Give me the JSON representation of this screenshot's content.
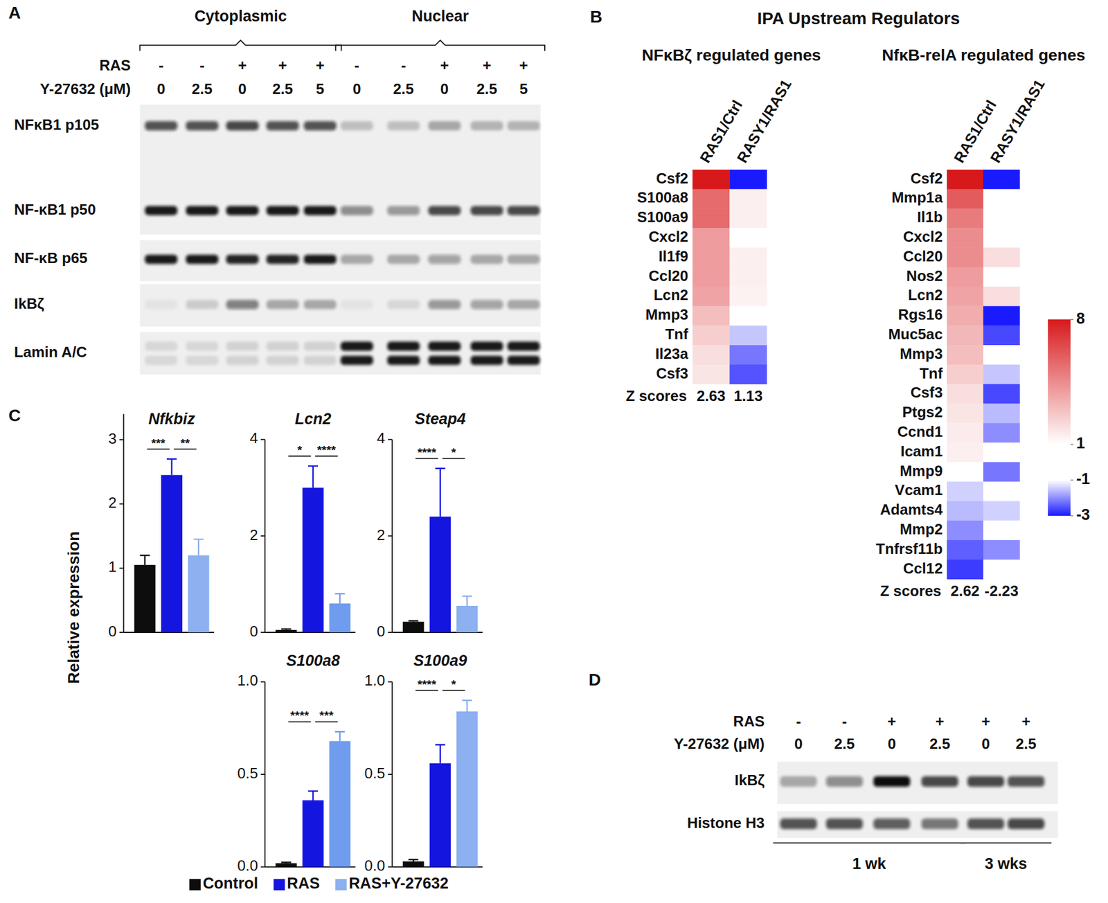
{
  "chart_data": [
    {
      "type": "blot",
      "panel": "A",
      "lane_groups": [
        "Cytoplasmic",
        "Cytoplasmic",
        "Cytoplasmic",
        "Cytoplasmic",
        "Cytoplasmic",
        "Nuclear",
        "Nuclear",
        "Nuclear",
        "Nuclear",
        "Nuclear"
      ],
      "lane_rows": [
        {
          "label": "RAS",
          "values": [
            "-",
            "-",
            "+",
            "+",
            "+",
            "-",
            "-",
            "+",
            "+",
            "+"
          ]
        },
        {
          "label": "Y-27632 (μM)",
          "values": [
            0,
            2.5,
            0,
            2.5,
            5,
            0,
            2.5,
            0,
            2.5,
            5
          ]
        }
      ],
      "strips": [
        {
          "rows": [
            {
              "label": "NFκB1 p105",
              "intensity": [
                0.7,
                0.7,
                0.75,
                0.7,
                0.7,
                0.2,
                0.2,
                0.3,
                0.25,
                0.25
              ]
            },
            {
              "label": "NF-κB1 p50",
              "intensity": [
                0.95,
                0.95,
                0.95,
                0.95,
                0.95,
                0.45,
                0.4,
                0.75,
                0.75,
                0.75
              ]
            }
          ]
        },
        {
          "rows": [
            {
              "label": "NF-κB p65",
              "intensity": [
                0.95,
                0.95,
                0.9,
                0.9,
                0.95,
                0.3,
                0.3,
                0.35,
                0.3,
                0.3
              ]
            }
          ]
        },
        {
          "rows": [
            {
              "label": "IkBζ",
              "intensity": [
                0.05,
                0.15,
                0.5,
                0.3,
                0.3,
                0.05,
                0.1,
                0.4,
                0.35,
                0.3
              ]
            }
          ]
        },
        {
          "rows": [
            {
              "label": "Lamin A/C",
              "intensity": [
                0.1,
                0.1,
                0.12,
                0.12,
                0.12,
                0.95,
                0.95,
                0.95,
                0.95,
                0.95
              ]
            },
            {
              "label": null,
              "intensity": [
                0.1,
                0.1,
                0.12,
                0.12,
                0.12,
                0.95,
                0.95,
                0.95,
                0.95,
                0.95
              ]
            }
          ]
        }
      ]
    },
    {
      "type": "heatmap",
      "panel": "B",
      "annotations": [
        {
          "text": "IPA Upstream Regulators"
        }
      ],
      "title": "NFκBζ regulated genes",
      "x": [
        "RAS1/Ctrl",
        "RASY1/RAS1"
      ],
      "y": [
        "Csf2",
        "S100a8",
        "S100a9",
        "Cxcl2",
        "Il1f9",
        "Ccl20",
        "Lcn2",
        "Mmp3",
        "Tnf",
        "Il23a",
        "Csf3"
      ],
      "cells": [
        [
          8,
          -3
        ],
        [
          5.5,
          1.5
        ],
        [
          5.5,
          1.5
        ],
        [
          4,
          1
        ],
        [
          4,
          1.5
        ],
        [
          4,
          1.5
        ],
        [
          3.8,
          1.4
        ],
        [
          3,
          1
        ],
        [
          2.5,
          -1.5
        ],
        [
          2,
          -2.2
        ],
        [
          1.8,
          -2.5
        ]
      ],
      "z_label": "Z scores",
      "z_scores": [
        2.63,
        1.13
      ]
    },
    {
      "type": "heatmap",
      "title": "NfκB-relA regulated genes",
      "x": [
        "RAS1/Ctrl",
        "RASY1/RAS1"
      ],
      "y": [
        "Csf2",
        "Mmp1a",
        "Il1b",
        "Cxcl2",
        "Ccl20",
        "Nos2",
        "Lcn2",
        "Rgs16",
        "Muc5ac",
        "Mmp3",
        "Tnf",
        "Csf3",
        "Ptgs2",
        "Ccnd1",
        "Icam1",
        "Mmp9",
        "Vcam1",
        "Adamts4",
        "Mmp2",
        "Tnfrsf11b",
        "Ccl12"
      ],
      "cells": [
        [
          8,
          -3
        ],
        [
          6,
          1
        ],
        [
          5,
          1
        ],
        [
          4.5,
          1
        ],
        [
          4.5,
          2
        ],
        [
          4,
          1
        ],
        [
          3.8,
          2
        ],
        [
          3.5,
          -3
        ],
        [
          3.2,
          -2.6
        ],
        [
          3,
          1
        ],
        [
          2.5,
          -1.5
        ],
        [
          2,
          -2.6
        ],
        [
          1.8,
          -1.6
        ],
        [
          1.6,
          -2
        ],
        [
          1.5,
          1
        ],
        [
          1,
          -2.2
        ],
        [
          -1.4,
          1
        ],
        [
          -1.6,
          -1.4
        ],
        [
          -2,
          1
        ],
        [
          -2.4,
          -2
        ],
        [
          -2.7,
          1
        ]
      ],
      "z_label": "Z scores",
      "z_scores": [
        2.62,
        -2.23
      ],
      "colorbar": {
        "range": [
          -3,
          8
        ],
        "ticks": [
          8,
          1,
          -1,
          -3
        ],
        "colors": [
          "#d7191c",
          "#ffffff",
          "#ffffff",
          "#1a1aff"
        ]
      }
    },
    {
      "type": "bar",
      "panel": "C",
      "title": "Nfkbiz",
      "y_label": "Relative expression",
      "categories": [
        "Control",
        "RAS",
        "RAS+Y-27632"
      ],
      "values": [
        1.05,
        2.45,
        1.2
      ],
      "errors": [
        0.15,
        0.25,
        0.25
      ],
      "colors": [
        "#0d0d0d",
        "#1515e0",
        "#8cb0f0"
      ],
      "ylim": [
        0,
        3.4
      ],
      "yticks": [
        0,
        1,
        2,
        3
      ],
      "tick_labels": "y",
      "legend": "bottom",
      "annotations": [
        {
          "text": "***",
          "between": [
            "Control",
            "RAS"
          ]
        },
        {
          "text": "**",
          "between": [
            "RAS",
            "RAS+Y-27632"
          ]
        }
      ]
    },
    {
      "type": "bar",
      "title": "Lcn2",
      "categories": [
        "Control",
        "RAS",
        "RAS+Y-27632"
      ],
      "values": [
        0.05,
        3.0,
        0.6
      ],
      "errors": [
        0.02,
        0.45,
        0.2
      ],
      "colors": [
        "#0d0d0d",
        "#1515e0",
        "#6f9cee"
      ],
      "ylim": [
        0,
        4
      ],
      "yticks": [
        0,
        2,
        4
      ],
      "tick_labels": "y",
      "annotations": [
        {
          "text": "*",
          "between": [
            "Control",
            "RAS"
          ]
        },
        {
          "text": "****",
          "between": [
            "RAS",
            "RAS+Y-27632"
          ]
        }
      ]
    },
    {
      "type": "bar",
      "title": "Steap4",
      "categories": [
        "Control",
        "RAS",
        "RAS+Y-27632"
      ],
      "values": [
        0.22,
        2.4,
        0.55
      ],
      "errors": [
        0.02,
        1.0,
        0.2
      ],
      "colors": [
        "#0d0d0d",
        "#1515e0",
        "#8cb0f0"
      ],
      "ylim": [
        0,
        4
      ],
      "yticks": [
        0,
        2,
        4
      ],
      "tick_labels": "y",
      "annotations": [
        {
          "text": "****",
          "between": [
            "Control",
            "RAS"
          ]
        },
        {
          "text": "*",
          "between": [
            "RAS",
            "RAS+Y-27632"
          ]
        }
      ]
    },
    {
      "type": "bar",
      "title": "S100a8",
      "categories": [
        "Control",
        "RAS",
        "RAS+Y-27632"
      ],
      "values": [
        0.02,
        0.36,
        0.68
      ],
      "errors": [
        0.005,
        0.05,
        0.05
      ],
      "colors": [
        "#0d0d0d",
        "#1515e0",
        "#6f9cee"
      ],
      "ylim": [
        0,
        1
      ],
      "yticks": [
        {
          "value": 0,
          "label": "0.0"
        },
        0.5,
        {
          "value": 1,
          "label": "1.0"
        }
      ],
      "tick_labels": "y",
      "annotations": [
        {
          "text": "****",
          "between": [
            "Control",
            "RAS"
          ]
        },
        {
          "text": "***",
          "between": [
            "RAS",
            "RAS+Y-27632"
          ]
        }
      ]
    },
    {
      "type": "bar",
      "title": "S100a9",
      "categories": [
        "Control",
        "RAS",
        "RAS+Y-27632"
      ],
      "values": [
        0.03,
        0.56,
        0.84
      ],
      "errors": [
        0.01,
        0.1,
        0.06
      ],
      "colors": [
        "#0d0d0d",
        "#1515e0",
        "#8cb0f0"
      ],
      "ylim": [
        0,
        1
      ],
      "yticks": [
        {
          "value": 0,
          "label": "0.0"
        },
        0.5,
        {
          "value": 1,
          "label": "1.0"
        }
      ],
      "tick_labels": "y",
      "annotations": [
        {
          "text": "****",
          "between": [
            "Control",
            "RAS"
          ]
        },
        {
          "text": "*",
          "between": [
            "RAS",
            "RAS+Y-27632"
          ]
        }
      ]
    },
    {
      "type": "blot",
      "panel": "D",
      "lane_groups": [
        "1 wk",
        "1 wk",
        "1 wk",
        "1 wk",
        "3 wks",
        "3 wks"
      ],
      "lane_rows": [
        {
          "label": "RAS",
          "values": [
            "-",
            "-",
            "+",
            "+",
            "+",
            "+"
          ]
        },
        {
          "label": "Y-27632 (μM)",
          "values": [
            0,
            2.5,
            0,
            2.5,
            0,
            2.5
          ]
        }
      ],
      "strips": [
        {
          "rows": [
            {
              "label": "IkBζ",
              "intensity": [
                0.3,
                0.45,
                1.0,
                0.75,
                0.75,
                0.7
              ]
            }
          ]
        },
        {
          "rows": [
            {
              "label": "Histone H3",
              "intensity": [
                0.7,
                0.7,
                0.65,
                0.55,
                0.7,
                0.75
              ]
            }
          ]
        }
      ]
    }
  ]
}
